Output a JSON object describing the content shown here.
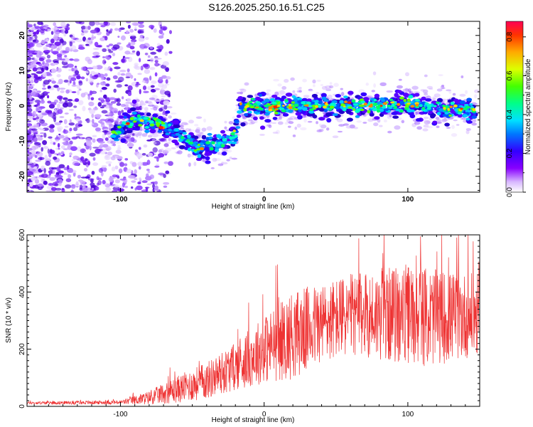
{
  "title": "S126.2025.250.16.51.C25",
  "chart_data": [
    {
      "type": "heatmap",
      "name": "spectrogram",
      "xlabel": "Height of straight line (km)",
      "ylabel": "Frequency (Hz)",
      "xlim": [
        -165,
        150
      ],
      "ylim": [
        -24.5,
        24
      ],
      "xticks": [
        -100,
        0,
        100
      ],
      "yticks": [
        -20,
        -10,
        0,
        10,
        20
      ],
      "colorbar": {
        "label": "Normalized spectral amplitude",
        "range": [
          0,
          0.88
        ],
        "ticks": [
          0.0,
          0.2,
          0.4,
          0.6,
          0.8
        ]
      },
      "ridge": {
        "description_points_x": [
          -105,
          -90,
          -75,
          -60,
          -45,
          -30,
          -20,
          -17,
          0,
          25,
          50,
          75,
          100,
          125,
          148
        ],
        "description_points_y": [
          -8,
          -4,
          -4.5,
          -8,
          -12,
          -11,
          -8,
          0,
          -0.5,
          0,
          0,
          0,
          0.5,
          -1,
          -1
        ]
      }
    },
    {
      "type": "line",
      "name": "snr",
      "xlabel": "Height of straight line (km)",
      "ylabel": "SNR (10 * v/v)",
      "xlim": [
        -165,
        150
      ],
      "ylim": [
        0,
        600
      ],
      "xticks": [
        -100,
        0,
        100
      ],
      "yticks": [
        0,
        200,
        400,
        600
      ],
      "color": "#ee3333",
      "envelope_x": [
        -165,
        -100,
        -80,
        -60,
        -40,
        -20,
        0,
        20,
        40,
        60,
        80,
        100,
        120,
        148
      ],
      "envelope_mean": [
        12,
        14,
        30,
        60,
        90,
        140,
        200,
        250,
        290,
        320,
        320,
        320,
        310,
        320
      ],
      "envelope_spread": [
        4,
        6,
        20,
        40,
        55,
        70,
        100,
        130,
        120,
        120,
        130,
        150,
        140,
        120
      ]
    }
  ]
}
